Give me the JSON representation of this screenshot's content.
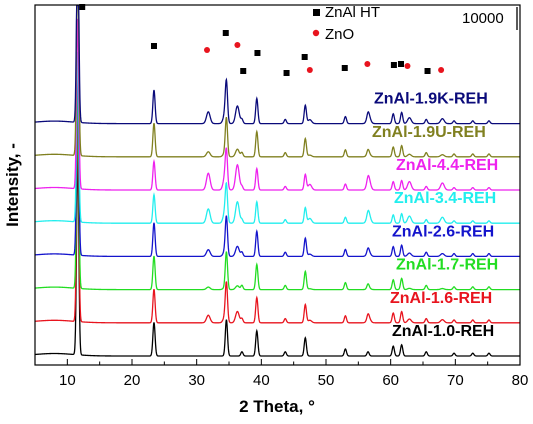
{
  "chart_data": {
    "type": "line",
    "xlabel": "2 Theta, °",
    "ylabel": "Intensity, -",
    "xlim": [
      5,
      80
    ],
    "x_ticks": [
      10,
      20,
      30,
      40,
      50,
      60,
      70,
      80
    ],
    "scale_bar_label": "10000",
    "legend": [
      {
        "label": "ZnAl HT",
        "marker": "square",
        "color": "#000000"
      },
      {
        "label": "ZnO",
        "marker": "circle",
        "color": "#e8141e"
      }
    ],
    "series": [
      {
        "name": "ZnAl-1.0-REH",
        "color": "#000000",
        "intensity": 1.0,
        "zno": 0.0
      },
      {
        "name": "ZnAl-1.6-REH",
        "color": "#e8141e",
        "intensity": 1.0,
        "zno": 0.45
      },
      {
        "name": "ZnAl-1.7-REH",
        "color": "#22dd22",
        "intensity": 1.0,
        "zno": 0.15
      },
      {
        "name": "ZnAl-2.6-REH",
        "color": "#1414cc",
        "intensity": 1.0,
        "zno": 0.4
      },
      {
        "name": "ZnAl-3.4-REH",
        "color": "#22eeee",
        "intensity": 0.85,
        "zno": 0.85
      },
      {
        "name": "ZnAl-4.4-REH",
        "color": "#ee22ee",
        "intensity": 0.85,
        "zno": 1.0
      },
      {
        "name": "ZnAl-1.9U-REH",
        "color": "#808020",
        "intensity": 1.0,
        "zno": 0.3
      },
      {
        "name": "ZnAl-1.9K-REH",
        "color": "#0a0a7a",
        "intensity": 1.0,
        "zno": 0.7
      }
    ],
    "peaks_ht": [
      11.6,
      23.4,
      34.6,
      37.0,
      39.3,
      43.7,
      46.8,
      53.0,
      56.5,
      60.4,
      61.7,
      65.5,
      69.8,
      72.7,
      75.2
    ],
    "peaks_ht_relative": [
      1.0,
      0.24,
      0.26,
      0.03,
      0.18,
      0.03,
      0.13,
      0.05,
      0.03,
      0.07,
      0.08,
      0.03,
      0.02,
      0.02,
      0.02
    ],
    "peaks_zno": [
      31.8,
      34.4,
      36.3,
      47.5,
      56.6,
      62.9,
      68.0
    ],
    "peaks_zno_relative": [
      0.12,
      0.1,
      0.18,
      0.04,
      0.08,
      0.06,
      0.05
    ],
    "markers_ht_x": [
      12.3,
      23.4,
      34.5,
      37.2,
      39.4,
      43.9,
      46.7,
      52.9,
      60.5,
      61.6,
      65.7
    ],
    "markers_zno_x": [
      31.6,
      36.3,
      47.5,
      56.4,
      62.6,
      67.8
    ]
  }
}
